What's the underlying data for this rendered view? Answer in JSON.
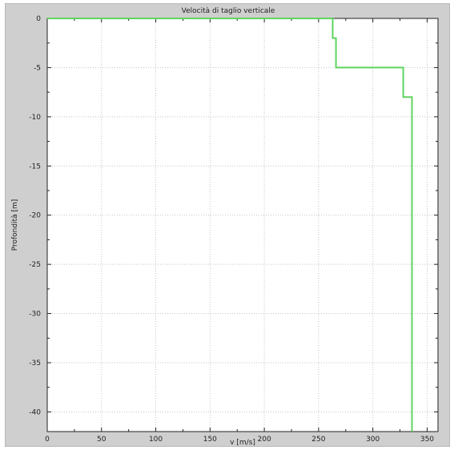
{
  "chart_data": {
    "type": "line",
    "title": "Velocità di taglio verticale",
    "xlabel": "v [m/s]",
    "ylabel": "Profondità [m]",
    "xlim": [
      0,
      360
    ],
    "ylim": [
      -42,
      0
    ],
    "xticks": [
      0,
      50,
      100,
      150,
      200,
      250,
      300,
      350
    ],
    "yticks": [
      0,
      -5,
      -10,
      -15,
      -20,
      -25,
      -30,
      -35,
      -40
    ],
    "grid": true,
    "series": [
      {
        "color": "#5fd45f",
        "points": [
          [
            0,
            0
          ],
          [
            263,
            0
          ],
          [
            263,
            -2
          ],
          [
            266,
            -2
          ],
          [
            266,
            -5
          ],
          [
            328,
            -5
          ],
          [
            328,
            -8
          ],
          [
            336,
            -8
          ],
          [
            336,
            -42
          ]
        ]
      }
    ]
  }
}
